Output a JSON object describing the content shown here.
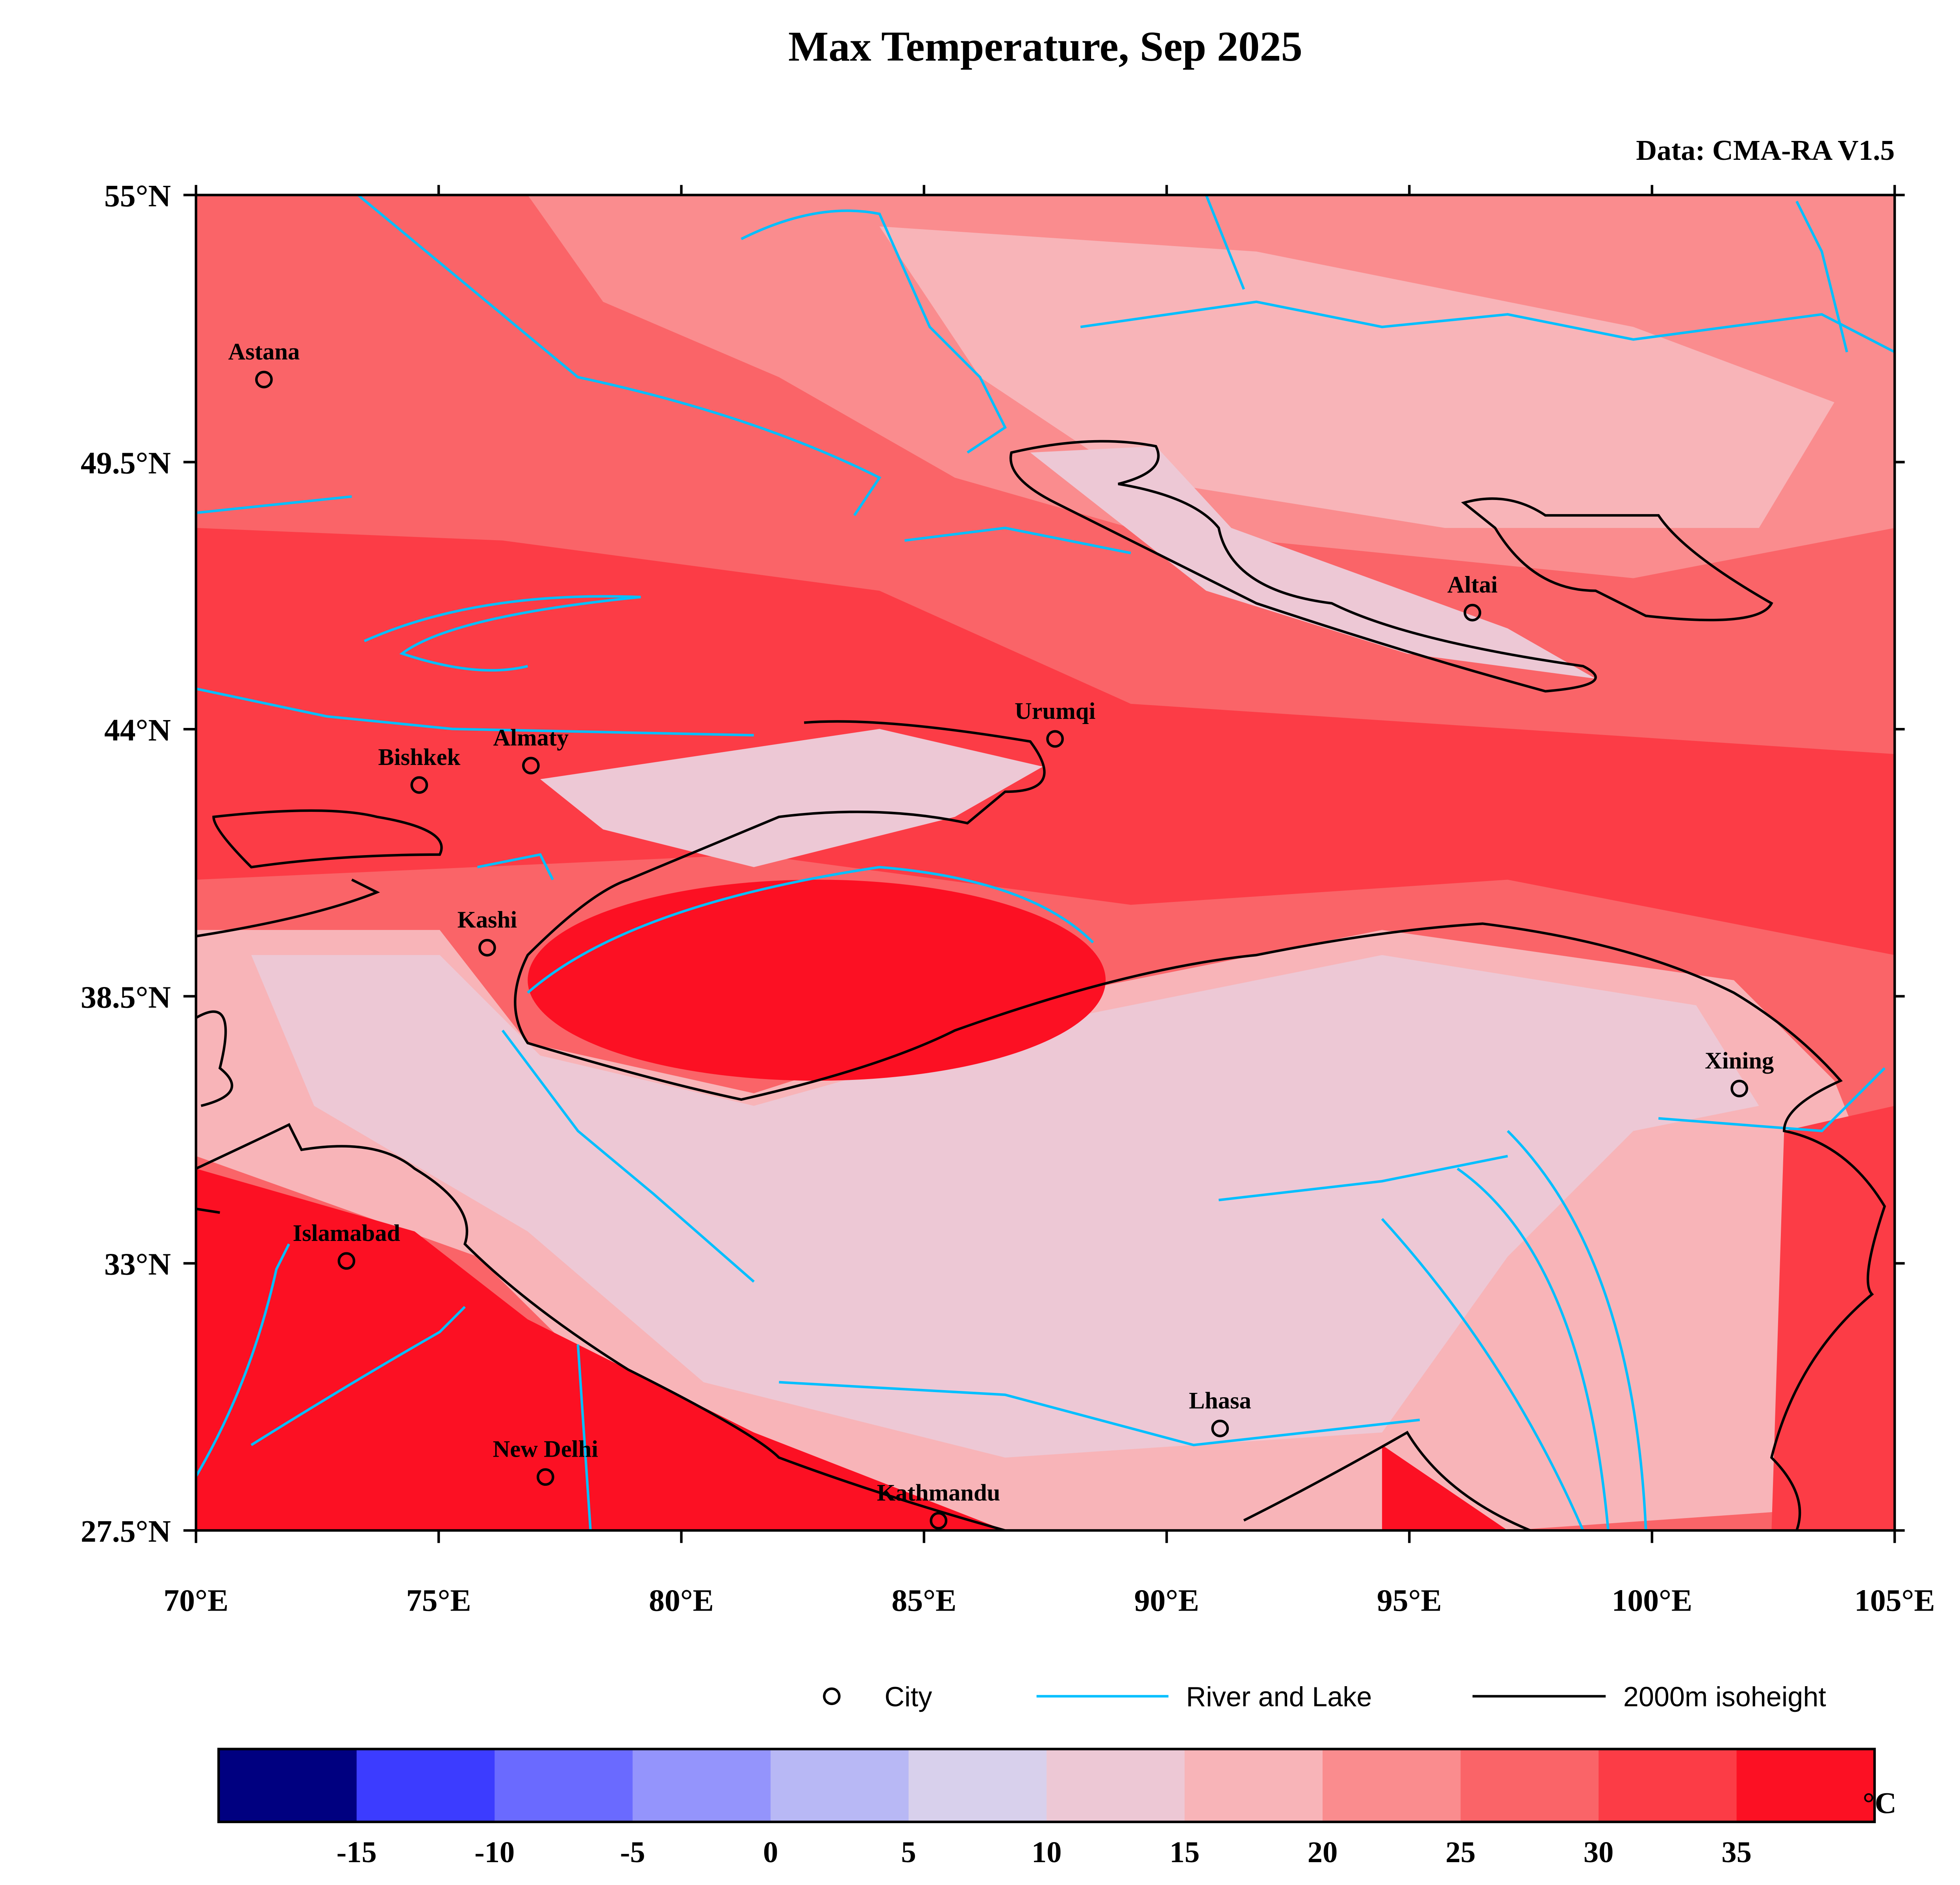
{
  "title": "Max Temperature, Sep 2025",
  "source": "Data: CMA-RA V1.5",
  "map": {
    "lon_range": [
      70,
      105
    ],
    "lat_range": [
      27.5,
      55
    ],
    "x_ticks": [
      {
        "value": 70,
        "label": "70°E"
      },
      {
        "value": 75,
        "label": "75°E"
      },
      {
        "value": 80,
        "label": "80°E"
      },
      {
        "value": 85,
        "label": "85°E"
      },
      {
        "value": 90,
        "label": "90°E"
      },
      {
        "value": 95,
        "label": "95°E"
      },
      {
        "value": 100,
        "label": "100°E"
      },
      {
        "value": 105,
        "label": "105°E"
      }
    ],
    "y_ticks": [
      {
        "value": 55,
        "label": "55°N"
      },
      {
        "value": 49.5,
        "label": "49.5°N"
      },
      {
        "value": 44,
        "label": "44°N"
      },
      {
        "value": 38.5,
        "label": "38.5°N"
      },
      {
        "value": 33,
        "label": "33°N"
      },
      {
        "value": 27.5,
        "label": "27.5°N"
      }
    ],
    "cities": [
      {
        "name": "Astana",
        "lon": 71.4,
        "lat": 51.2
      },
      {
        "name": "Almaty",
        "lon": 76.9,
        "lat": 43.25
      },
      {
        "name": "Bishkek",
        "lon": 74.6,
        "lat": 42.85
      },
      {
        "name": "Urumqi",
        "lon": 87.7,
        "lat": 43.8
      },
      {
        "name": "Altai",
        "lon": 96.3,
        "lat": 46.4
      },
      {
        "name": "Kashi",
        "lon": 76.0,
        "lat": 39.5
      },
      {
        "name": "Xining",
        "lon": 101.8,
        "lat": 36.6
      },
      {
        "name": "Islamabad",
        "lon": 73.1,
        "lat": 33.05
      },
      {
        "name": "New Delhi",
        "lon": 77.2,
        "lat": 28.6
      },
      {
        "name": "Kathmandu",
        "lon": 85.3,
        "lat": 27.7
      },
      {
        "name": "Lhasa",
        "lon": 91.1,
        "lat": 29.6
      }
    ]
  },
  "legend": {
    "city": "City",
    "river": "River and Lake",
    "isoheight": "2000m isoheight",
    "river_color": "#00bfff",
    "isoheight_color": "#000000"
  },
  "colorbar": {
    "unit": "°C",
    "ticks": [
      "-15",
      "-10",
      "-5",
      "0",
      "5",
      "10",
      "15",
      "20",
      "25",
      "30",
      "35"
    ],
    "colors": [
      "#000080",
      "#3c3cff",
      "#6a6aff",
      "#9494fc",
      "#b8b8f5",
      "#d8d0ec",
      "#edc8d5",
      "#f8b4b8",
      "#fa8c8e",
      "#fa6468",
      "#fc3c46",
      "#fc1023"
    ]
  }
}
